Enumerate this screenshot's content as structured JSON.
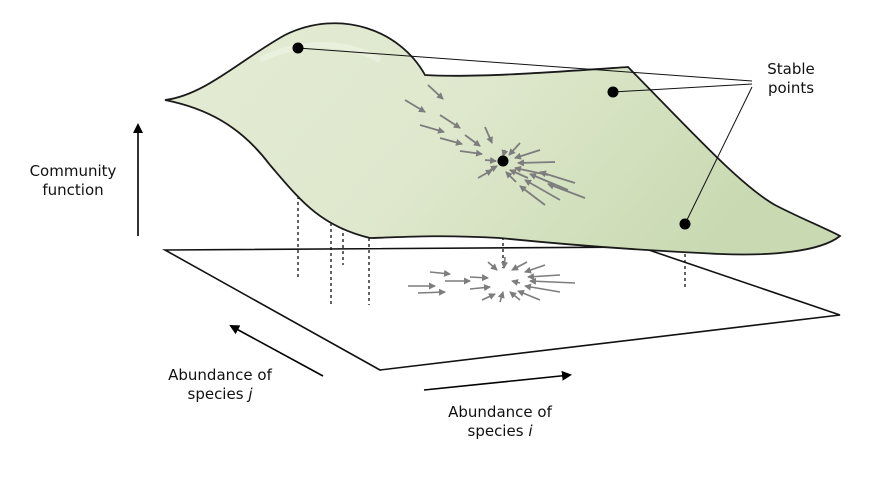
{
  "labels": {
    "stable_points": [
      "Stable",
      "points"
    ],
    "community_function": [
      "Community",
      "function"
    ],
    "species_j": {
      "line1": "Abundance of",
      "line2": "species",
      "var": "j"
    },
    "species_i": {
      "line1": "Abundance of",
      "line2": "species",
      "var": "i"
    }
  },
  "colors": {
    "surface_fill": "#dfe9cf",
    "surface_stroke": "#222222",
    "arrow": "#808080",
    "point": "#000000"
  }
}
